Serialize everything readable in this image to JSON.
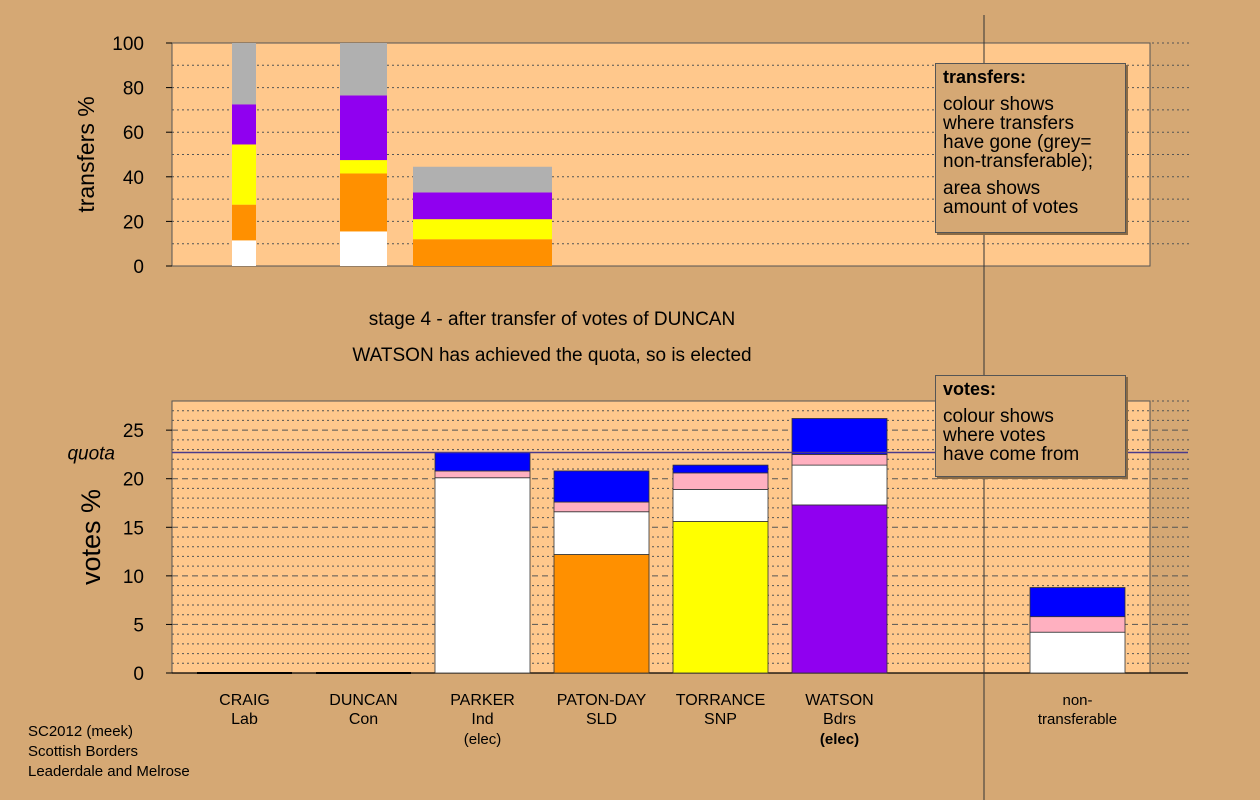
{
  "chart_data": [
    {
      "type": "bar",
      "stacked": true,
      "ylabel": "transfers %",
      "ylim": [
        0,
        100
      ],
      "yticks": [
        0,
        20,
        40,
        60,
        80,
        100
      ],
      "grid": "dotted",
      "columns": [
        {
          "segments": [
            {
              "value": 11.5,
              "color": "#ffffff"
            },
            {
              "value": 16,
              "color": "#ff9000"
            },
            {
              "value": 27,
              "color": "#ffff00"
            },
            {
              "value": 18,
              "color": "#9000f0"
            },
            {
              "value": 27.5,
              "color": "#b0b0b0"
            }
          ]
        },
        {
          "segments": [
            {
              "value": 15.5,
              "color": "#ffffff"
            },
            {
              "value": 26,
              "color": "#ff9000"
            },
            {
              "value": 6,
              "color": "#ffff00"
            },
            {
              "value": 29,
              "color": "#9000f0"
            },
            {
              "value": 23.5,
              "color": "#b0b0b0"
            }
          ]
        },
        {
          "segments": [
            {
              "value": 12,
              "color": "#ff9000"
            },
            {
              "value": 9,
              "color": "#ffff00"
            },
            {
              "value": 12,
              "color": "#9000f0"
            },
            {
              "value": 11.5,
              "color": "#b0b0b0"
            }
          ]
        }
      ]
    },
    {
      "type": "bar",
      "stacked": true,
      "ylabel": "votes %",
      "ylim": [
        0,
        28
      ],
      "yticks": [
        0,
        5,
        10,
        15,
        20,
        25
      ],
      "quota": 22.7,
      "quota_label": "quota",
      "grid": "dashed",
      "categories": [
        {
          "name": "CRAIG",
          "party": "Lab",
          "note": ""
        },
        {
          "name": "DUNCAN",
          "party": "Con",
          "note": ""
        },
        {
          "name": "PARKER",
          "party": "Ind",
          "note": "(elec)"
        },
        {
          "name": "PATON-DAY",
          "party": "SLD",
          "note": ""
        },
        {
          "name": "TORRANCE",
          "party": "SNP",
          "note": ""
        },
        {
          "name": "WATSON",
          "party": "Bdrs",
          "note": "(elec)"
        },
        {
          "name": "non-",
          "party": "transferable",
          "note": ""
        }
      ],
      "bars": [
        {
          "segments": []
        },
        {
          "segments": []
        },
        {
          "segments": [
            {
              "value": 20.1,
              "color": "#ffffff"
            },
            {
              "value": 0.7,
              "color": "#ffb0c0"
            },
            {
              "value": 1.9,
              "color": "#0000ff"
            }
          ]
        },
        {
          "segments": [
            {
              "value": 12.2,
              "color": "#ff9000"
            },
            {
              "value": 4.4,
              "color": "#ffffff"
            },
            {
              "value": 1.0,
              "color": "#ffb0c0"
            },
            {
              "value": 3.2,
              "color": "#0000ff"
            }
          ]
        },
        {
          "segments": [
            {
              "value": 15.6,
              "color": "#ffff00"
            },
            {
              "value": 3.3,
              "color": "#ffffff"
            },
            {
              "value": 1.7,
              "color": "#ffb0c0"
            },
            {
              "value": 0.8,
              "color": "#0000ff"
            }
          ]
        },
        {
          "segments": [
            {
              "value": 17.3,
              "color": "#9000f0"
            },
            {
              "value": 4.1,
              "color": "#ffffff"
            },
            {
              "value": 1.1,
              "color": "#ffb0c0"
            },
            {
              "value": 3.7,
              "color": "#0000ff"
            }
          ]
        },
        {
          "segments": [
            {
              "value": 4.2,
              "color": "#ffffff"
            },
            {
              "value": 1.6,
              "color": "#ffb0c0"
            },
            {
              "value": 3.0,
              "color": "#0000ff"
            }
          ]
        }
      ]
    }
  ],
  "stage_text": "stage 4 - after transfer of votes of DUNCAN",
  "elected_text": "WATSON has achieved the quota, so is elected",
  "transfers_legend": {
    "title": "transfers:",
    "lines1": [
      "colour shows",
      "where transfers",
      "have gone (grey=",
      "non-transferable);"
    ],
    "lines2": [
      "area shows",
      "amount of votes"
    ]
  },
  "votes_legend": {
    "title": "votes:",
    "lines": [
      "colour shows",
      "where votes",
      "have come from"
    ]
  },
  "footer": [
    "SC2012 (meek)",
    "Scottish Borders",
    "Leaderdale and Melrose"
  ],
  "colors": {
    "background": "#d5a874",
    "plot": "#ffc88c",
    "quota_line": "#4a3a8a"
  }
}
